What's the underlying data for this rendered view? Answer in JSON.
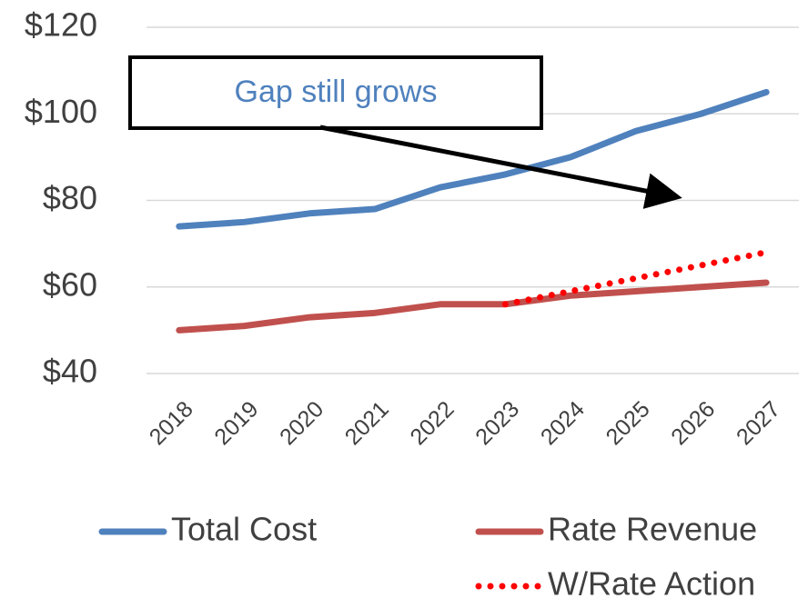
{
  "chart_data": {
    "type": "line",
    "categories": [
      "2018",
      "2019",
      "2020",
      "2021",
      "2022",
      "2023",
      "2024",
      "2025",
      "2026",
      "2027"
    ],
    "series": [
      {
        "name": "Total Cost",
        "color": "#4f81bd",
        "style": "solid",
        "values": [
          74,
          75,
          77,
          78,
          83,
          86,
          90,
          96,
          100,
          105
        ]
      },
      {
        "name": "Rate Revenue",
        "color": "#c0504d",
        "style": "solid",
        "values": [
          50,
          51,
          53,
          54,
          56,
          56,
          58,
          59,
          60,
          61
        ]
      },
      {
        "name": "W/Rate Action",
        "color": "#ff0000",
        "style": "dotted",
        "values": [
          null,
          null,
          null,
          null,
          null,
          56,
          59,
          62,
          65,
          68
        ]
      }
    ],
    "ylim": [
      40,
      120
    ],
    "yticks": [
      {
        "value": 40,
        "label": "$40"
      },
      {
        "value": 60,
        "label": "$60"
      },
      {
        "value": 80,
        "label": "$80"
      },
      {
        "value": 100,
        "label": "$100"
      },
      {
        "value": 120,
        "label": "$120"
      }
    ],
    "grid": true,
    "legend": "bottom",
    "annotations": [
      {
        "text": "Gap still grows",
        "color": "#4f81bd"
      }
    ]
  }
}
